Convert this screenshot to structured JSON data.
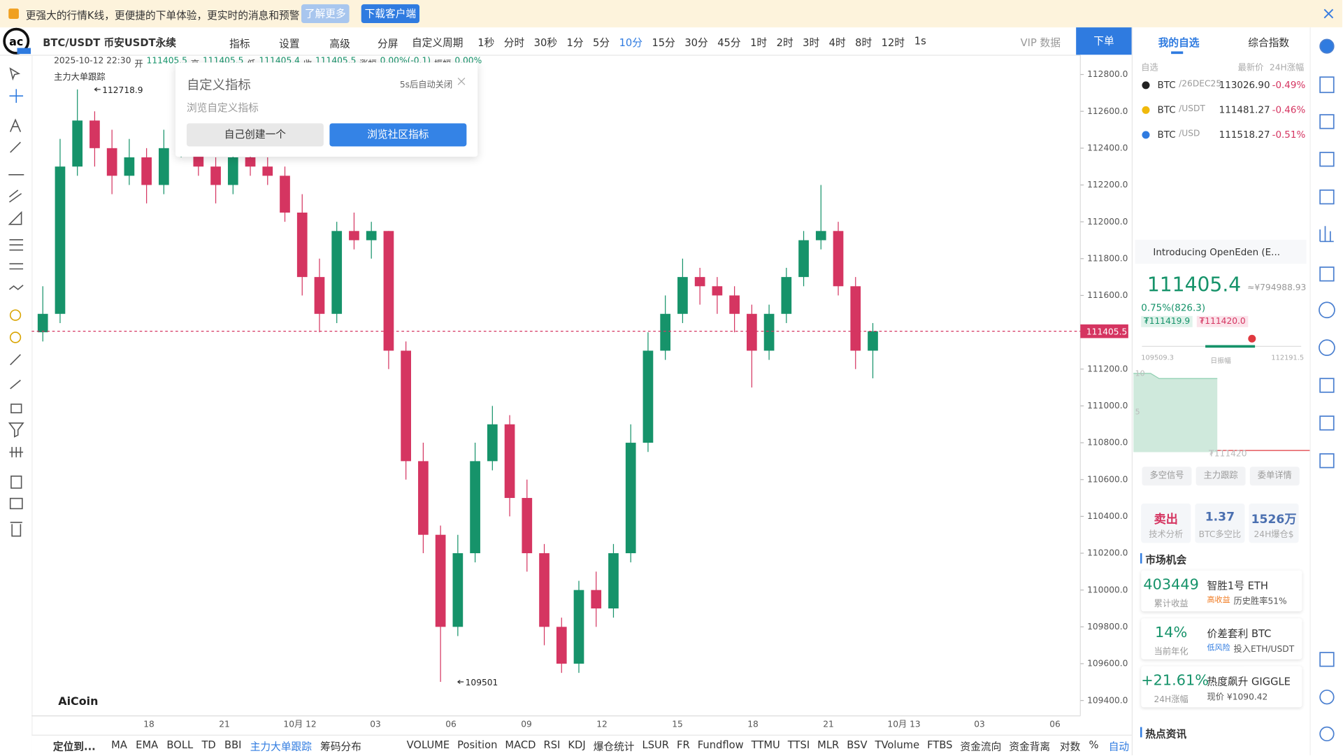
{
  "banner": {
    "text": "更强大的行情K线，更便捷的下单体验，更实时的消息和预警",
    "learn_more": "了解更多",
    "download": "下载客户端"
  },
  "toolbar": {
    "symbol": "BTC/USDT 币安USDT永续",
    "indicators": "指标",
    "settings": "设置",
    "advanced": "高级",
    "split": "分屏",
    "custom_period": "自定义周期",
    "periods": [
      "1秒",
      "分时",
      "30秒",
      "1分",
      "5分",
      "10分",
      "15分",
      "30分",
      "45分",
      "1时",
      "2时",
      "3时",
      "4时",
      "8时",
      "12时"
    ],
    "active_period": 5,
    "interval": "1s",
    "vip": "VIP 数据",
    "order": "下单"
  },
  "popup": {
    "title": "自定义指标",
    "subtitle": "浏览自定义指标",
    "auto_close": "5s后自动关闭",
    "create": "自己创建一个",
    "browse": "浏览社区指标"
  },
  "chart_data": {
    "type": "candlestick",
    "header": [
      "2025-10-12 22:30",
      "开",
      "111405.5",
      "高",
      "111405.5",
      "低",
      "111405.4",
      "收",
      "111405.5",
      "涨幅",
      "0.00%(-0.1)",
      "振幅",
      "0.00%"
    ],
    "indicator": "主力大单跟踪",
    "brand": "AiCoin",
    "up_color": "#16936a",
    "down_color": "#d53561",
    "candles": [
      [
        111400,
        111650,
        111350,
        111500
      ],
      [
        111500,
        112450,
        111450,
        112300
      ],
      [
        112300,
        112718.9,
        112250,
        112550
      ],
      [
        112550,
        112600,
        112300,
        112400
      ],
      [
        112400,
        112500,
        112150,
        112250
      ],
      [
        112250,
        112450,
        112200,
        112350
      ],
      [
        112350,
        112400,
        112100,
        112200
      ],
      [
        112200,
        112500,
        112150,
        112400
      ],
      [
        112400,
        112550,
        112350,
        112450
      ],
      [
        112450,
        112500,
        112250,
        112300
      ],
      [
        112300,
        112350,
        112100,
        112200
      ],
      [
        112200,
        112450,
        112150,
        112350
      ],
      [
        112350,
        112400,
        112250,
        112300
      ],
      [
        112300,
        112350,
        112200,
        112250
      ],
      [
        112250,
        112300,
        112000,
        112050
      ],
      [
        112050,
        112150,
        111600,
        111700
      ],
      [
        111700,
        111800,
        111400,
        111500
      ],
      [
        111500,
        112000,
        111450,
        111950
      ],
      [
        111950,
        112050,
        111850,
        111900
      ],
      [
        111900,
        112000,
        111800,
        111950
      ],
      [
        111950,
        111950,
        111200,
        111300
      ],
      [
        111300,
        111350,
        110600,
        110700
      ],
      [
        110700,
        110800,
        110200,
        110300
      ],
      [
        110300,
        110350,
        109501,
        109800
      ],
      [
        109800,
        110300,
        109750,
        110200
      ],
      [
        110200,
        110800,
        110150,
        110700
      ],
      [
        110700,
        111000,
        110650,
        110900
      ],
      [
        110900,
        110950,
        110400,
        110500
      ],
      [
        110500,
        110600,
        110100,
        110200
      ],
      [
        110200,
        110250,
        109700,
        109800
      ],
      [
        109800,
        109850,
        109550,
        109600
      ],
      [
        109600,
        110050,
        109550,
        110000
      ],
      [
        110000,
        110100,
        109800,
        109900
      ],
      [
        109900,
        110250,
        109850,
        110200
      ],
      [
        110200,
        110900,
        110150,
        110800
      ],
      [
        110800,
        111400,
        110750,
        111300
      ],
      [
        111300,
        111600,
        111250,
        111500
      ],
      [
        111500,
        111800,
        111450,
        111700
      ],
      [
        111700,
        111750,
        111550,
        111650
      ],
      [
        111650,
        111700,
        111500,
        111600
      ],
      [
        111600,
        111650,
        111400,
        111500
      ],
      [
        111500,
        111550,
        111100,
        111300
      ],
      [
        111300,
        111550,
        111250,
        111500
      ],
      [
        111500,
        111750,
        111450,
        111700
      ],
      [
        111700,
        111950,
        111650,
        111900
      ],
      [
        111900,
        112200,
        111850,
        111950
      ],
      [
        111950,
        112000,
        111600,
        111650
      ],
      [
        111650,
        111700,
        111200,
        111300
      ],
      [
        111300,
        111450,
        111150,
        111405.5
      ]
    ],
    "ylim": [
      109400,
      112800
    ],
    "yticks": [
      {
        "value": 112800,
        "label": "112800.0"
      },
      {
        "value": 112600,
        "label": "112600.0"
      },
      {
        "value": 112400,
        "label": "112400.0"
      },
      {
        "value": 112200,
        "label": "112200.0"
      },
      {
        "value": 112000,
        "label": "112000.0"
      },
      {
        "value": 111800,
        "label": "111800.0"
      },
      {
        "value": 111600,
        "label": "111600.0"
      },
      {
        "value": 111200,
        "label": "111200.0"
      },
      {
        "value": 111000,
        "label": "111000.0"
      },
      {
        "value": 110800,
        "label": "110800.0"
      },
      {
        "value": 110600,
        "label": "110600.0"
      },
      {
        "value": 110400,
        "label": "110400.0"
      },
      {
        "value": 110200,
        "label": "110200.0"
      },
      {
        "value": 110000,
        "label": "110000.0"
      },
      {
        "value": 109800,
        "label": "109800.0"
      },
      {
        "value": 109600,
        "label": "109600.0"
      },
      {
        "value": 109400,
        "label": "109400.0"
      }
    ],
    "x_labels": [
      "18",
      "21",
      "10月 12",
      "03",
      "06",
      "09",
      "12",
      "15",
      "18",
      "21",
      "10月 13",
      "03",
      "06"
    ],
    "last_price": 111405.5,
    "high_marker": 112718.9,
    "low_marker": 109501.0
  },
  "bottom_bar": {
    "locate": "定位到...",
    "main": [
      "MA",
      "EMA",
      "BOLL",
      "TD",
      "BBI",
      "主力大单跟踪",
      "筹码分布"
    ],
    "main_active": 5,
    "sub": [
      "VOLUME",
      "Position",
      "MACD",
      "RSI",
      "KDJ",
      "爆仓统计",
      "LSUR",
      "FR",
      "Fundflow",
      "TTMU",
      "TTSI",
      "MLR",
      "BSV",
      "TVolume",
      "FTBS",
      "资金流向",
      "资金背离"
    ],
    "log": "对数",
    "percent": "%",
    "auto": "自动"
  },
  "side": {
    "tabs": [
      "我的自选",
      "综合指数"
    ],
    "cols": [
      "自选",
      "最新价",
      "24H涨幅"
    ],
    "watchlist": [
      {
        "symbol": "BTC",
        "pair": "/26DEC25",
        "price": "113026.90",
        "change": "-0.49%"
      },
      {
        "symbol": "BTC",
        "pair": "/USDT",
        "price": "111481.27",
        "change": "-0.46%"
      },
      {
        "symbol": "BTC",
        "pair": "/USD",
        "price": "111518.27",
        "change": "-0.51%"
      }
    ],
    "news": "Introducing OpenEden (E...",
    "price": "111405.4",
    "price_cny": "≈¥794988.93",
    "change": "0.75%(826.3)",
    "bid": "₮111419.9",
    "ask": "₮111420.0",
    "range_low": "109509.3",
    "range_label": "日振幅",
    "range_high": "112191.5",
    "spark_ticks": [
      "10",
      "5"
    ],
    "spark_label": "₮111420",
    "buttons": [
      "多空信号",
      "主力跟踪",
      "委单详情"
    ],
    "stats": [
      {
        "value": "卖出",
        "label": "技术分析"
      },
      {
        "value": "1.37",
        "label": "BTC多空比"
      },
      {
        "value": "1526万",
        "label": "24H爆仓$"
      }
    ],
    "market": "市场机会",
    "cards": [
      {
        "value": "403449",
        "label": "累计收益",
        "title": "智胜1号 ETH",
        "tag": "高收益",
        "desc": "历史胜率51%"
      },
      {
        "value": "14%",
        "label": "当前年化",
        "title": "价差套利 BTC",
        "tag": "低风险",
        "desc": "投入ETH/USDT"
      },
      {
        "value": "+21.61%",
        "label": "24H涨幅",
        "title": "热度飙升 GIGGLE",
        "desc": "现价 ¥1090.42"
      }
    ],
    "hot": "热点资讯"
  }
}
